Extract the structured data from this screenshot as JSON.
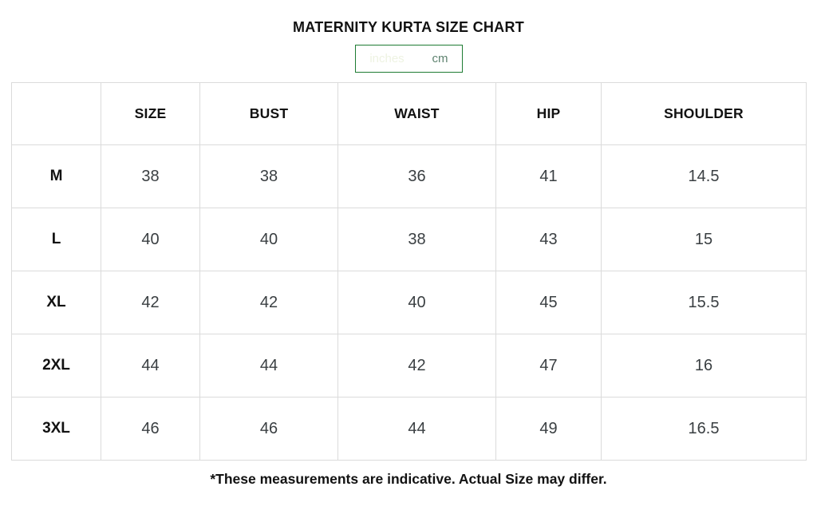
{
  "title": "MATERNITY KURTA SIZE CHART",
  "toggle": {
    "inches_label": "inches",
    "cm_label": "cm",
    "active_unit": "inches"
  },
  "colors": {
    "accent_green": "#1e7c33",
    "inactive_unit_text": "#5f8370",
    "table_border": "#dbdbdb",
    "value_text": "#3a3f42"
  },
  "table": {
    "headers": [
      "",
      "SIZE",
      "BUST",
      "WAIST",
      "HIP",
      "SHOULDER"
    ],
    "rows": [
      {
        "label": "M",
        "values": [
          "38",
          "38",
          "36",
          "41",
          "14.5"
        ]
      },
      {
        "label": "L",
        "values": [
          "40",
          "40",
          "38",
          "43",
          "15"
        ]
      },
      {
        "label": "XL",
        "values": [
          "42",
          "42",
          "40",
          "45",
          "15.5"
        ]
      },
      {
        "label": "2XL",
        "values": [
          "44",
          "44",
          "42",
          "47",
          "16"
        ]
      },
      {
        "label": "3XL",
        "values": [
          "46",
          "46",
          "44",
          "49",
          "16.5"
        ]
      }
    ]
  },
  "note": "*These measurements are indicative. Actual Size may differ."
}
